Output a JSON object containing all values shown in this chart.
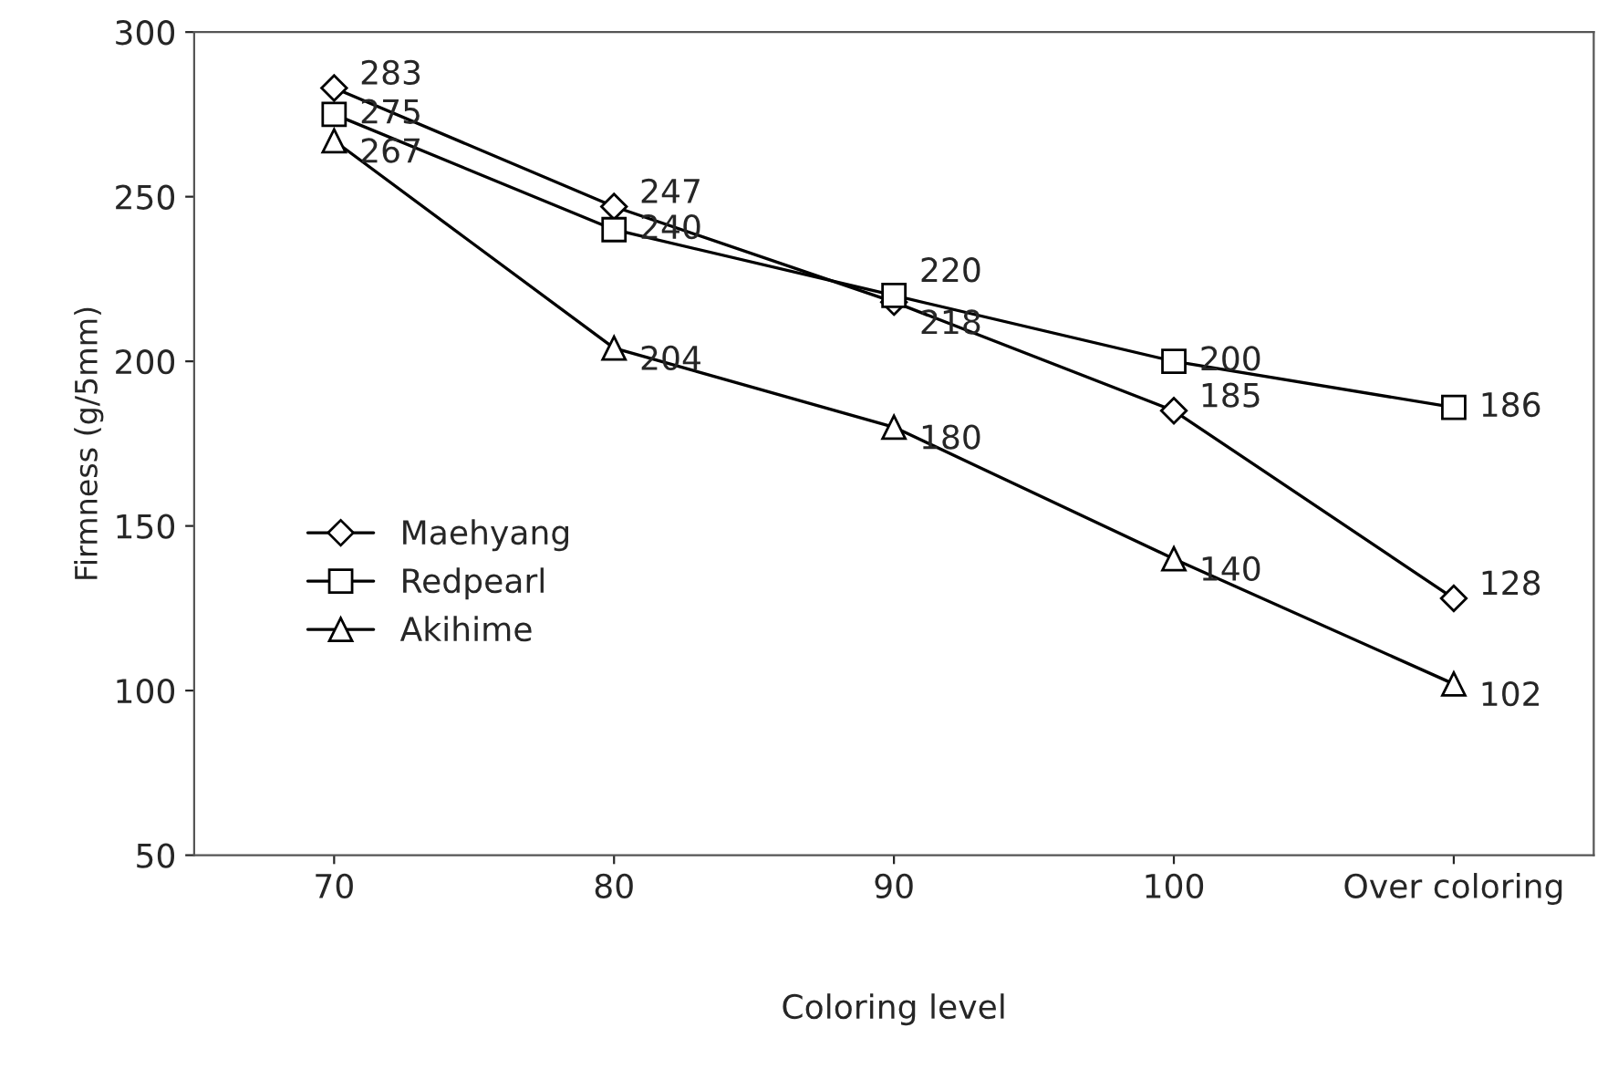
{
  "chart_data": {
    "type": "line",
    "xlabel": "Coloring level",
    "ylabel": "Firmness (g/5mm)",
    "categories": [
      "70",
      "80",
      "90",
      "100",
      "Over coloring"
    ],
    "series": [
      {
        "name": "Maehyang",
        "color": "#000000",
        "marker": "diamond",
        "values": [
          283,
          247,
          218,
          185,
          128
        ]
      },
      {
        "name": "Redpearl",
        "color": "#000000",
        "marker": "square",
        "values": [
          275,
          240,
          220,
          200,
          186
        ]
      },
      {
        "name": "Akihime",
        "color": "#000000",
        "marker": "triangle",
        "values": [
          267,
          204,
          180,
          140,
          102
        ]
      }
    ],
    "ylim": [
      50,
      300
    ],
    "yticks": [
      50,
      100,
      150,
      200,
      250,
      300
    ],
    "data_labels": true,
    "legend": "left",
    "grid": false,
    "line_style": "solid"
  }
}
